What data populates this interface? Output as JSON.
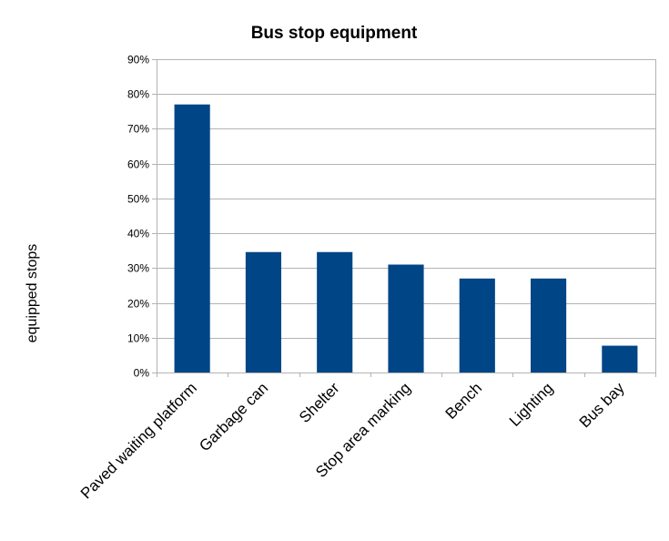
{
  "chart_data": {
    "type": "bar",
    "title": "Bus stop equipment",
    "xlabel": "",
    "ylabel": "equipped stops",
    "categories": [
      "Paved waiting platform",
      "Garbage can",
      "Shelter",
      "Stop area marking",
      "Bench",
      "Lighting",
      "Bus bay"
    ],
    "values": [
      77,
      34.6,
      34.6,
      31,
      27,
      27,
      7.7
    ],
    "ylim": [
      0,
      90
    ],
    "ytick_step": 10,
    "ytick_labels": [
      "0%",
      "10%",
      "20%",
      "30%",
      "40%",
      "50%",
      "60%",
      "70%",
      "80%",
      "90%"
    ],
    "grid": true,
    "legend": "none",
    "bar_color": "#004586",
    "grid_color": "#b3b3b3"
  }
}
